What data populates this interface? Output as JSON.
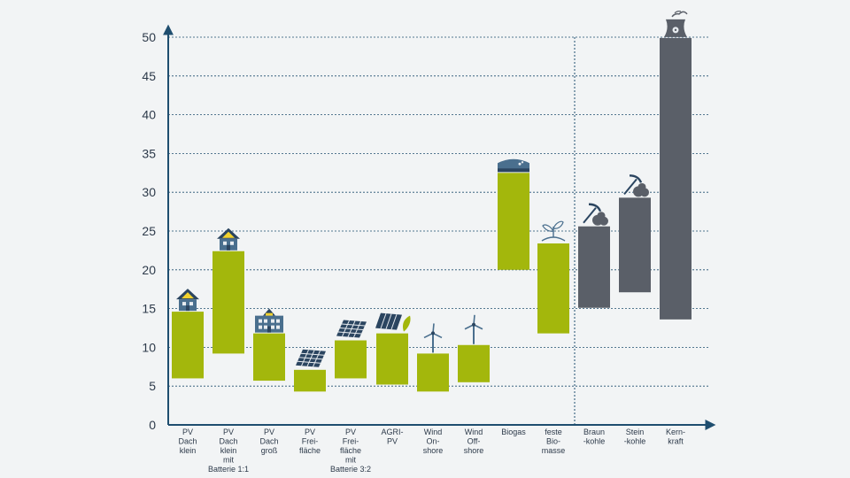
{
  "chart_data": {
    "type": "bar",
    "subtype": "floating-range",
    "title": "",
    "xlabel": "",
    "ylabel": "",
    "ylim": [
      0,
      50
    ],
    "yticks": [
      0,
      5,
      10,
      15,
      20,
      25,
      30,
      35,
      40,
      45,
      50
    ],
    "grid": true,
    "colors": {
      "renewable": "#a3b70c",
      "conventional": "#5a5f68",
      "axis": "#1f4e6f",
      "grid": "#1f4e6f",
      "text": "#2d3a4a"
    },
    "bars": [
      {
        "label": [
          "PV",
          "Dach",
          "klein"
        ],
        "min": 6.0,
        "max": 14.6,
        "group": "renewable",
        "icon": "house-small-icon"
      },
      {
        "label": [
          "PV",
          "Dach",
          "klein",
          "mit",
          "Batterie 1:1"
        ],
        "min": 9.2,
        "max": 22.4,
        "group": "renewable",
        "icon": "house-small-icon"
      },
      {
        "label": [
          "PV",
          "Dach",
          "groß"
        ],
        "min": 5.7,
        "max": 11.8,
        "group": "renewable",
        "icon": "building-icon"
      },
      {
        "label": [
          "PV",
          "Frei-",
          "fläche"
        ],
        "min": 4.3,
        "max": 7.1,
        "group": "renewable",
        "icon": "solar-panel-icon"
      },
      {
        "label": [
          "PV",
          "Frei-",
          "fläche",
          "mit",
          "Batterie 3:2"
        ],
        "min": 6.0,
        "max": 10.9,
        "group": "renewable",
        "icon": "solar-panel-icon"
      },
      {
        "label": [
          "AGRI-",
          "PV"
        ],
        "min": 5.2,
        "max": 11.8,
        "group": "renewable",
        "icon": "agri-pv-icon"
      },
      {
        "label": [
          "Wind",
          "On-",
          "shore"
        ],
        "min": 4.3,
        "max": 9.2,
        "group": "renewable",
        "icon": "wind-turbine-icon"
      },
      {
        "label": [
          "Wind",
          "Off-",
          "shore"
        ],
        "min": 5.5,
        "max": 10.3,
        "group": "renewable",
        "icon": "wind-turbine-icon"
      },
      {
        "label": [
          "Biogas"
        ],
        "min": 20.0,
        "max": 32.5,
        "group": "renewable",
        "icon": "biogas-tank-icon"
      },
      {
        "label": [
          "feste",
          "Bio-",
          "masse"
        ],
        "min": 11.8,
        "max": 23.4,
        "group": "renewable",
        "icon": "seedling-icon"
      },
      {
        "label": [
          "Braun",
          "-kohle"
        ],
        "min": 15.1,
        "max": 25.6,
        "group": "conventional",
        "icon": "coal-pickaxe-icon"
      },
      {
        "label": [
          "Stein",
          "-kohle"
        ],
        "min": 17.1,
        "max": 29.3,
        "group": "conventional",
        "icon": "coal-pickaxe-icon"
      },
      {
        "label": [
          "Kern-",
          "kraft"
        ],
        "min": 13.6,
        "max": 49.9,
        "group": "conventional",
        "icon": "nuclear-plant-icon"
      }
    ]
  }
}
